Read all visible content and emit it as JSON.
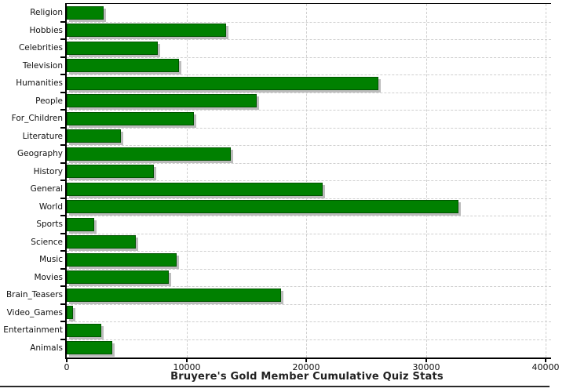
{
  "title": "Bruyere's Gold Member Cumulative Quiz Stats",
  "colors": {
    "bar_fill": "#008000",
    "bar_border": "#005400",
    "bar_shadow": "#bcbcbc",
    "grid": "#cfcfcf",
    "axis": "#000000",
    "text": "#111111"
  },
  "chart_data": {
    "type": "bar",
    "orientation": "horizontal",
    "title": "Bruyere's Gold Member Cumulative Quiz Stats",
    "categories": [
      "Religion",
      "Hobbies",
      "Celebrities",
      "Television",
      "Humanities",
      "People",
      "For_Children",
      "Literature",
      "Geography",
      "History",
      "General",
      "World",
      "Sports",
      "Science",
      "Music",
      "Movies",
      "Brain_Teasers",
      "Video_Games",
      "Entertainment",
      "Animals"
    ],
    "values": [
      3100,
      13300,
      7600,
      9400,
      26000,
      15900,
      10600,
      4500,
      13700,
      7300,
      21400,
      32700,
      2300,
      5800,
      9200,
      8500,
      17900,
      500,
      2900,
      3800
    ],
    "xlabel": "",
    "ylabel": "",
    "xlim": [
      0,
      40000
    ],
    "x_ticks": [
      0,
      10000,
      20000,
      30000,
      40000
    ],
    "x_tick_labels": [
      "0",
      "10000",
      "20000",
      "30000",
      "40000"
    ],
    "grid": "dashed",
    "legend": "none"
  }
}
